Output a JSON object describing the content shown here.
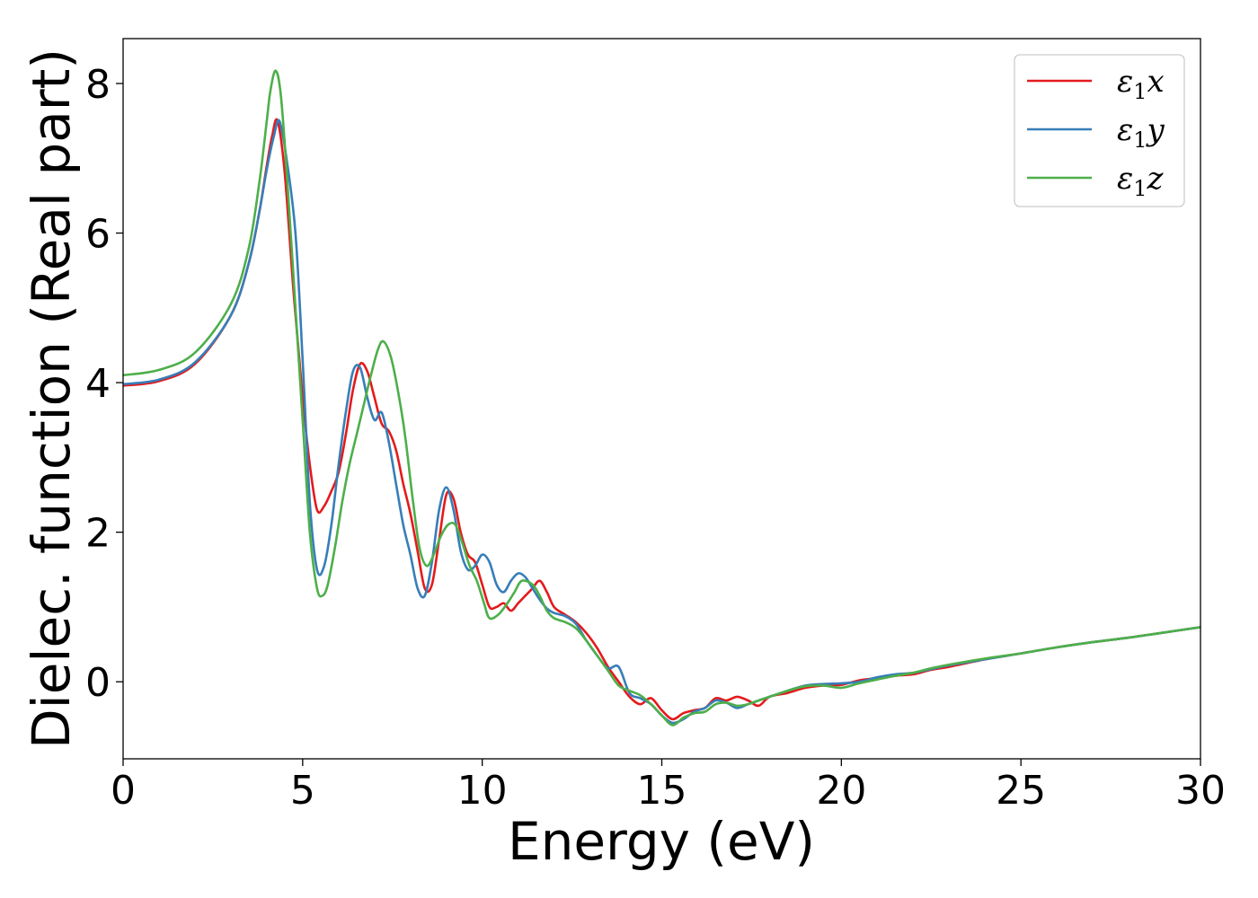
{
  "chart_data": {
    "type": "line",
    "xlabel": "Energy (eV)",
    "ylabel": "Dielec. function (Real part)",
    "xlim": [
      0,
      30
    ],
    "ylim": [
      -1.03,
      8.6
    ],
    "xticks": [
      0,
      5,
      10,
      15,
      20,
      25,
      30
    ],
    "yticks": [
      0,
      2,
      4,
      6,
      8
    ],
    "grid": false,
    "legend_position": "top-right",
    "series": [
      {
        "name": "ε1x",
        "label_main": "ε",
        "label_sub": "1",
        "label_var": "x",
        "color": "#e41a1c",
        "points": [
          [
            0,
            3.96
          ],
          [
            1,
            4.02
          ],
          [
            2,
            4.25
          ],
          [
            3,
            4.9
          ],
          [
            3.5,
            5.6
          ],
          [
            3.8,
            6.3
          ],
          [
            4.0,
            6.9
          ],
          [
            4.15,
            7.3
          ],
          [
            4.3,
            7.5
          ],
          [
            4.5,
            6.8
          ],
          [
            4.75,
            5.2
          ],
          [
            5.0,
            3.8
          ],
          [
            5.2,
            2.9
          ],
          [
            5.4,
            2.3
          ],
          [
            5.6,
            2.35
          ],
          [
            5.8,
            2.55
          ],
          [
            6.0,
            2.8
          ],
          [
            6.2,
            3.3
          ],
          [
            6.4,
            3.9
          ],
          [
            6.6,
            4.25
          ],
          [
            6.8,
            4.15
          ],
          [
            7.0,
            3.8
          ],
          [
            7.2,
            3.45
          ],
          [
            7.4,
            3.35
          ],
          [
            7.6,
            3.1
          ],
          [
            7.8,
            2.65
          ],
          [
            8.0,
            2.25
          ],
          [
            8.2,
            1.75
          ],
          [
            8.4,
            1.25
          ],
          [
            8.6,
            1.3
          ],
          [
            8.8,
            1.9
          ],
          [
            9.0,
            2.5
          ],
          [
            9.2,
            2.45
          ],
          [
            9.4,
            2.0
          ],
          [
            9.6,
            1.7
          ],
          [
            9.8,
            1.6
          ],
          [
            10.0,
            1.3
          ],
          [
            10.2,
            1.0
          ],
          [
            10.4,
            1.0
          ],
          [
            10.6,
            1.05
          ],
          [
            10.8,
            0.95
          ],
          [
            11.0,
            1.05
          ],
          [
            11.2,
            1.15
          ],
          [
            11.4,
            1.25
          ],
          [
            11.6,
            1.35
          ],
          [
            11.8,
            1.2
          ],
          [
            12.0,
            1.0
          ],
          [
            12.3,
            0.9
          ],
          [
            12.6,
            0.8
          ],
          [
            12.9,
            0.65
          ],
          [
            13.2,
            0.45
          ],
          [
            13.5,
            0.2
          ],
          [
            13.8,
            0.0
          ],
          [
            14.1,
            -0.2
          ],
          [
            14.4,
            -0.3
          ],
          [
            14.7,
            -0.22
          ],
          [
            15.0,
            -0.38
          ],
          [
            15.3,
            -0.5
          ],
          [
            15.6,
            -0.42
          ],
          [
            15.9,
            -0.38
          ],
          [
            16.2,
            -0.35
          ],
          [
            16.5,
            -0.22
          ],
          [
            16.8,
            -0.25
          ],
          [
            17.1,
            -0.2
          ],
          [
            17.4,
            -0.25
          ],
          [
            17.7,
            -0.32
          ],
          [
            18.0,
            -0.2
          ],
          [
            18.5,
            -0.15
          ],
          [
            19.0,
            -0.08
          ],
          [
            19.5,
            -0.05
          ],
          [
            20.0,
            -0.04
          ],
          [
            20.5,
            0.02
          ],
          [
            21.0,
            0.05
          ],
          [
            21.5,
            0.08
          ],
          [
            22.0,
            0.1
          ],
          [
            22.5,
            0.16
          ],
          [
            23.0,
            0.2
          ],
          [
            24.0,
            0.3
          ],
          [
            25.0,
            0.38
          ],
          [
            26.0,
            0.46
          ],
          [
            27.0,
            0.53
          ],
          [
            28.0,
            0.59
          ],
          [
            29.0,
            0.66
          ],
          [
            30.0,
            0.73
          ]
        ]
      },
      {
        "name": "ε1y",
        "label_main": "ε",
        "label_sub": "1",
        "label_var": "y",
        "color": "#377eb8",
        "points": [
          [
            0,
            3.98
          ],
          [
            1,
            4.04
          ],
          [
            2,
            4.27
          ],
          [
            3,
            4.9
          ],
          [
            3.5,
            5.6
          ],
          [
            3.8,
            6.3
          ],
          [
            4.0,
            6.85
          ],
          [
            4.2,
            7.3
          ],
          [
            4.35,
            7.5
          ],
          [
            4.55,
            7.0
          ],
          [
            4.8,
            6.0
          ],
          [
            5.0,
            4.3
          ],
          [
            5.2,
            2.4
          ],
          [
            5.4,
            1.5
          ],
          [
            5.6,
            1.55
          ],
          [
            5.8,
            2.1
          ],
          [
            6.0,
            2.9
          ],
          [
            6.2,
            3.6
          ],
          [
            6.4,
            4.15
          ],
          [
            6.6,
            4.2
          ],
          [
            6.8,
            3.8
          ],
          [
            7.0,
            3.5
          ],
          [
            7.2,
            3.6
          ],
          [
            7.4,
            3.2
          ],
          [
            7.6,
            2.65
          ],
          [
            7.8,
            2.1
          ],
          [
            8.0,
            1.7
          ],
          [
            8.2,
            1.25
          ],
          [
            8.4,
            1.15
          ],
          [
            8.6,
            1.6
          ],
          [
            8.8,
            2.3
          ],
          [
            9.0,
            2.6
          ],
          [
            9.2,
            2.3
          ],
          [
            9.4,
            1.75
          ],
          [
            9.6,
            1.5
          ],
          [
            9.8,
            1.55
          ],
          [
            10.0,
            1.7
          ],
          [
            10.2,
            1.6
          ],
          [
            10.4,
            1.3
          ],
          [
            10.6,
            1.2
          ],
          [
            10.8,
            1.35
          ],
          [
            11.0,
            1.45
          ],
          [
            11.2,
            1.4
          ],
          [
            11.4,
            1.25
          ],
          [
            11.6,
            1.1
          ],
          [
            11.8,
            0.98
          ],
          [
            12.0,
            0.92
          ],
          [
            12.3,
            0.88
          ],
          [
            12.6,
            0.78
          ],
          [
            12.9,
            0.55
          ],
          [
            13.2,
            0.35
          ],
          [
            13.5,
            0.18
          ],
          [
            13.8,
            0.2
          ],
          [
            14.1,
            -0.15
          ],
          [
            14.4,
            -0.22
          ],
          [
            14.7,
            -0.3
          ],
          [
            15.0,
            -0.45
          ],
          [
            15.3,
            -0.55
          ],
          [
            15.6,
            -0.5
          ],
          [
            15.9,
            -0.4
          ],
          [
            16.2,
            -0.35
          ],
          [
            16.5,
            -0.25
          ],
          [
            16.8,
            -0.28
          ],
          [
            17.1,
            -0.35
          ],
          [
            17.4,
            -0.3
          ],
          [
            17.7,
            -0.25
          ],
          [
            18.0,
            -0.2
          ],
          [
            18.5,
            -0.12
          ],
          [
            19.0,
            -0.05
          ],
          [
            19.5,
            -0.03
          ],
          [
            20.0,
            -0.02
          ],
          [
            20.5,
            0.0
          ],
          [
            21.0,
            0.06
          ],
          [
            21.5,
            0.1
          ],
          [
            22.0,
            0.12
          ],
          [
            22.5,
            0.17
          ],
          [
            23.0,
            0.22
          ],
          [
            24.0,
            0.3
          ],
          [
            25.0,
            0.38
          ],
          [
            26.0,
            0.46
          ],
          [
            27.0,
            0.53
          ],
          [
            28.0,
            0.59
          ],
          [
            29.0,
            0.66
          ],
          [
            30.0,
            0.73
          ]
        ]
      },
      {
        "name": "ε1z",
        "label_main": "ε",
        "label_sub": "1",
        "label_var": "z",
        "color": "#4daf4a",
        "points": [
          [
            0,
            4.1
          ],
          [
            1,
            4.17
          ],
          [
            2,
            4.4
          ],
          [
            3,
            5.05
          ],
          [
            3.5,
            5.8
          ],
          [
            3.8,
            6.7
          ],
          [
            4.0,
            7.5
          ],
          [
            4.1,
            7.9
          ],
          [
            4.25,
            8.17
          ],
          [
            4.4,
            7.8
          ],
          [
            4.6,
            6.5
          ],
          [
            4.8,
            5.0
          ],
          [
            5.0,
            3.5
          ],
          [
            5.2,
            2.0
          ],
          [
            5.4,
            1.25
          ],
          [
            5.55,
            1.15
          ],
          [
            5.7,
            1.3
          ],
          [
            5.9,
            1.8
          ],
          [
            6.1,
            2.4
          ],
          [
            6.3,
            2.9
          ],
          [
            6.5,
            3.3
          ],
          [
            6.7,
            3.7
          ],
          [
            6.9,
            4.1
          ],
          [
            7.1,
            4.45
          ],
          [
            7.25,
            4.55
          ],
          [
            7.45,
            4.35
          ],
          [
            7.65,
            3.9
          ],
          [
            7.85,
            3.3
          ],
          [
            8.05,
            2.5
          ],
          [
            8.25,
            1.8
          ],
          [
            8.45,
            1.55
          ],
          [
            8.65,
            1.7
          ],
          [
            8.85,
            1.95
          ],
          [
            9.05,
            2.1
          ],
          [
            9.25,
            2.1
          ],
          [
            9.45,
            1.85
          ],
          [
            9.65,
            1.55
          ],
          [
            9.85,
            1.35
          ],
          [
            10.05,
            1.05
          ],
          [
            10.2,
            0.85
          ],
          [
            10.45,
            0.9
          ],
          [
            10.7,
            1.05
          ],
          [
            10.9,
            1.2
          ],
          [
            11.1,
            1.35
          ],
          [
            11.4,
            1.3
          ],
          [
            11.6,
            1.15
          ],
          [
            11.8,
            0.95
          ],
          [
            12.0,
            0.85
          ],
          [
            12.3,
            0.8
          ],
          [
            12.6,
            0.72
          ],
          [
            12.9,
            0.55
          ],
          [
            13.2,
            0.35
          ],
          [
            13.5,
            0.15
          ],
          [
            13.8,
            -0.05
          ],
          [
            14.1,
            -0.12
          ],
          [
            14.4,
            -0.18
          ],
          [
            14.7,
            -0.3
          ],
          [
            15.0,
            -0.45
          ],
          [
            15.3,
            -0.58
          ],
          [
            15.6,
            -0.48
          ],
          [
            15.9,
            -0.42
          ],
          [
            16.2,
            -0.4
          ],
          [
            16.5,
            -0.3
          ],
          [
            16.8,
            -0.28
          ],
          [
            17.1,
            -0.32
          ],
          [
            17.4,
            -0.3
          ],
          [
            17.7,
            -0.25
          ],
          [
            18.0,
            -0.2
          ],
          [
            18.5,
            -0.12
          ],
          [
            19.0,
            -0.06
          ],
          [
            19.5,
            -0.05
          ],
          [
            20.0,
            -0.08
          ],
          [
            20.5,
            -0.02
          ],
          [
            21.0,
            0.03
          ],
          [
            21.5,
            0.08
          ],
          [
            22.0,
            0.12
          ],
          [
            22.5,
            0.18
          ],
          [
            23.0,
            0.23
          ],
          [
            24.0,
            0.31
          ],
          [
            25.0,
            0.38
          ],
          [
            26.0,
            0.46
          ],
          [
            27.0,
            0.53
          ],
          [
            28.0,
            0.59
          ],
          [
            29.0,
            0.66
          ],
          [
            30.0,
            0.73
          ]
        ]
      }
    ]
  }
}
